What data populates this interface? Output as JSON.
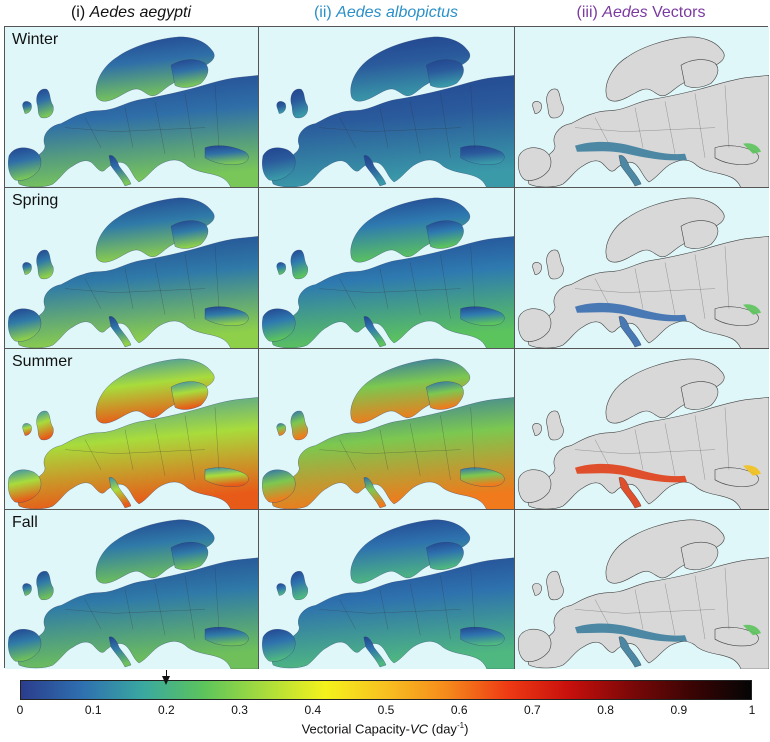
{
  "columns": [
    {
      "prefix": "(i) ",
      "italic": "Aedes aegypti",
      "suffix": "",
      "color": "#111111"
    },
    {
      "prefix": "(ii) ",
      "italic": "Aedes albopictus",
      "suffix": "",
      "color": "#2a90c8"
    },
    {
      "prefix": "(iii) ",
      "italic": "Aedes",
      "suffix": " Vectors",
      "color": "#7b3aa0"
    }
  ],
  "rows": [
    {
      "season": "Winter"
    },
    {
      "season": "Spring"
    },
    {
      "season": "Summer"
    },
    {
      "season": "Fall"
    }
  ],
  "colorbar": {
    "ticks": [
      "0",
      "0.1",
      "0.2",
      "0.3",
      "0.4",
      "0.5",
      "0.6",
      "0.7",
      "0.8",
      "0.9",
      "1"
    ],
    "title_prefix": "Vectorial Capacity-",
    "title_italic": "VC",
    "title_unit": " (day",
    "title_sup": "-1",
    "title_end": ")",
    "marker_value": 0.2,
    "stops": [
      "#2b3d8c",
      "#2e6fb0",
      "#3aa8a0",
      "#5cc45c",
      "#a8dc3c",
      "#f4f21c",
      "#f8c020",
      "#f58a1c",
      "#ee3a14",
      "#c8100c",
      "#7e0808",
      "#3c0404",
      "#050505"
    ]
  },
  "palette": {
    "sea": "#dff7f9",
    "land_low": "#1f3f95",
    "land_grey": "#d8d8d8",
    "border": "#444444"
  }
}
